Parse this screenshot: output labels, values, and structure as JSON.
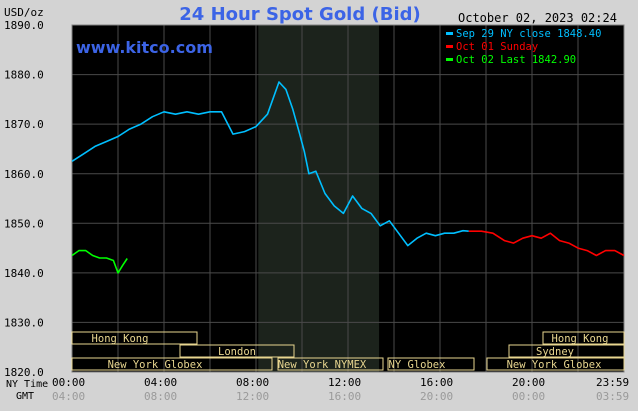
{
  "header": {
    "title": "24 Hour Spot Gold (Bid)",
    "unit": "USD/oz",
    "datetime": "October 02, 2023 02:24",
    "site": "www.kitco.com"
  },
  "legend": [
    {
      "label": "Sep 29 NY close 1848.40",
      "color": "#00bfff"
    },
    {
      "label": "Oct 01 Sunday",
      "color": "#ff0000"
    },
    {
      "label": "Oct 02 Last 1842.90",
      "color": "#00ff00"
    }
  ],
  "axis": {
    "ny_time_label": "NY Time",
    "gmt_label": "GMT",
    "ny_ticks": [
      "00:00",
      "04:00",
      "08:00",
      "12:00",
      "16:00",
      "20:00",
      "23:59"
    ],
    "gmt_ticks": [
      "04:00",
      "08:00",
      "12:00",
      "16:00",
      "20:00",
      "00:00",
      "03:59"
    ],
    "y_ticks": [
      "1890.0",
      "1880.0",
      "1870.0",
      "1860.0",
      "1850.0",
      "1840.0",
      "1830.0",
      "1820.0"
    ]
  },
  "sessions": {
    "hong_kong_1": "Hong Kong",
    "london": "London",
    "ny_globex_1": "New York Globex",
    "ny_nymex": "New York NYMEX",
    "ny_globex_2": "NY Globex",
    "hong_kong_2": "Hong Kong",
    "sydney": "Sydney",
    "ny_globex_3": "New York Globex"
  },
  "colors": {
    "background": "#000000",
    "grid": "#4a4a4a",
    "highlight": "#1c231c",
    "title": "#3c64e6",
    "session_bar": "#e8d690"
  },
  "chart_data": {
    "type": "line",
    "title": "24 Hour Spot Gold (Bid)",
    "ylabel": "USD/oz",
    "xlim": [
      0,
      24
    ],
    "ylim": [
      1820,
      1890
    ],
    "grid": true,
    "legend_position": "top-right",
    "series": [
      {
        "name": "Sep 29 NY close 1848.40",
        "color": "#00bfff",
        "x": [
          0.0,
          0.5,
          1.0,
          1.5,
          2.0,
          2.5,
          3.0,
          3.5,
          4.0,
          4.5,
          5.0,
          5.5,
          6.0,
          6.5,
          7.0,
          7.5,
          8.0,
          8.5,
          9.0,
          9.3,
          9.6,
          9.9,
          10.1,
          10.3,
          10.6,
          11.0,
          11.4,
          11.8,
          12.2,
          12.6,
          13.0,
          13.4,
          13.8,
          14.2,
          14.6,
          15.0,
          15.4,
          15.8,
          16.2,
          16.6,
          17.0,
          17.25
        ],
        "y": [
          1862.5,
          1864.0,
          1865.5,
          1866.5,
          1867.5,
          1869.0,
          1870.0,
          1871.5,
          1872.5,
          1872.0,
          1872.5,
          1872.0,
          1872.5,
          1872.5,
          1868.0,
          1868.5,
          1869.5,
          1872.0,
          1878.5,
          1877.0,
          1873.0,
          1868.0,
          1864.5,
          1860.0,
          1860.5,
          1856.0,
          1853.5,
          1852.0,
          1855.5,
          1853.0,
          1852.0,
          1849.5,
          1850.5,
          1848.0,
          1845.5,
          1847.0,
          1848.0,
          1847.5,
          1848.0,
          1848.0,
          1848.5,
          1848.4
        ]
      },
      {
        "name": "Oct 01 Sunday",
        "color": "#ff0000",
        "x": [
          17.25,
          17.8,
          18.3,
          18.8,
          19.2,
          19.6,
          20.0,
          20.4,
          20.8,
          21.2,
          21.6,
          22.0,
          22.4,
          22.8,
          23.2,
          23.6,
          24.0
        ],
        "y": [
          1848.4,
          1848.4,
          1848.0,
          1846.5,
          1846.0,
          1847.0,
          1847.5,
          1847.0,
          1848.0,
          1846.5,
          1846.0,
          1845.0,
          1844.5,
          1843.5,
          1844.5,
          1844.5,
          1843.5
        ]
      },
      {
        "name": "Oct 02 Last 1842.90",
        "color": "#00ff00",
        "x": [
          0.0,
          0.3,
          0.6,
          0.9,
          1.2,
          1.5,
          1.8,
          2.0,
          2.2,
          2.4
        ],
        "y": [
          1843.5,
          1844.5,
          1844.5,
          1843.5,
          1843.0,
          1843.0,
          1842.5,
          1840.0,
          1841.5,
          1842.9
        ]
      }
    ]
  }
}
